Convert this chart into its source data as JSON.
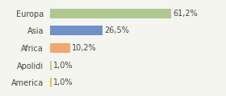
{
  "categories": [
    "America",
    "Apolidi",
    "Africa",
    "Asia",
    "Europa"
  ],
  "values": [
    1.0,
    1.0,
    10.2,
    26.5,
    61.2
  ],
  "colors": [
    "#f0c040",
    "#c8c8a0",
    "#f0a870",
    "#7090c8",
    "#b0c890"
  ],
  "labels": [
    "1,0%",
    "1,0%",
    "10,2%",
    "26,5%",
    "61,2%"
  ],
  "xlim": [
    0,
    75
  ],
  "background_color": "#f5f5f0",
  "bar_height": 0.55,
  "label_fontsize": 7.0,
  "tick_fontsize": 7.0
}
